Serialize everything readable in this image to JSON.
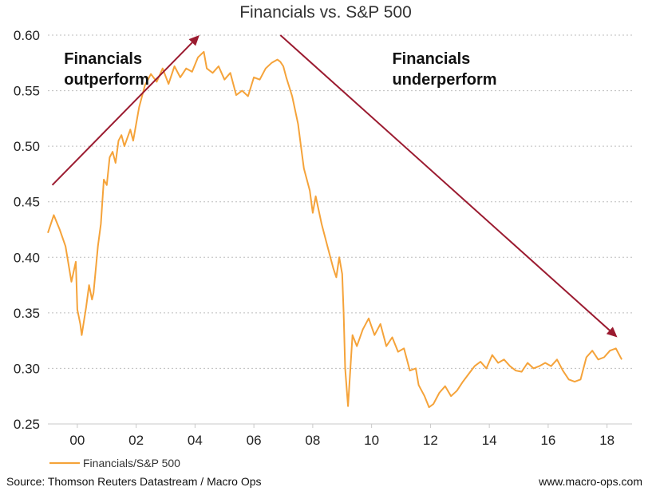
{
  "chart_data": {
    "type": "line",
    "title": "Financials vs. S&P 500",
    "xlabel": "",
    "ylabel": "",
    "x_tick_labels": [
      "00",
      "02",
      "04",
      "06",
      "08",
      "10",
      "12",
      "14",
      "16",
      "18"
    ],
    "x_tick_values": [
      2000,
      2002,
      2004,
      2006,
      2008,
      2010,
      2012,
      2014,
      2016,
      2018
    ],
    "xlim": [
      1999,
      2018.85
    ],
    "ylim": [
      0.25,
      0.6
    ],
    "y_ticks": [
      0.25,
      0.3,
      0.35,
      0.4,
      0.45,
      0.5,
      0.55,
      0.6
    ],
    "y_tick_labels": [
      "0.25",
      "0.30",
      "0.35",
      "0.40",
      "0.45",
      "0.50",
      "0.55",
      "0.60"
    ],
    "grid": true,
    "legend_position": "bottom-left",
    "series": [
      {
        "name": "Financials/S&P 500",
        "color": "#f5a33a",
        "x": [
          1999.0,
          1999.2,
          1999.4,
          1999.6,
          1999.8,
          1999.95,
          2000.0,
          2000.1,
          2000.15,
          2000.3,
          2000.4,
          2000.5,
          2000.55,
          2000.7,
          2000.8,
          2000.9,
          2001.0,
          2001.1,
          2001.2,
          2001.3,
          2001.4,
          2001.5,
          2001.6,
          2001.8,
          2001.9,
          2002.0,
          2002.1,
          2002.3,
          2002.5,
          2002.7,
          2002.9,
          2003.1,
          2003.3,
          2003.5,
          2003.7,
          2003.9,
          2004.1,
          2004.3,
          2004.4,
          2004.6,
          2004.8,
          2005.0,
          2005.2,
          2005.4,
          2005.6,
          2005.8,
          2006.0,
          2006.2,
          2006.4,
          2006.6,
          2006.8,
          2006.9,
          2007.0,
          2007.1,
          2007.3,
          2007.5,
          2007.6,
          2007.7,
          2007.9,
          2008.0,
          2008.1,
          2008.3,
          2008.5,
          2008.7,
          2008.8,
          2008.9,
          2009.0,
          2009.05,
          2009.1,
          2009.2,
          2009.35,
          2009.5,
          2009.7,
          2009.9,
          2010.1,
          2010.3,
          2010.5,
          2010.7,
          2010.9,
          2011.1,
          2011.3,
          2011.5,
          2011.6,
          2011.8,
          2011.95,
          2012.1,
          2012.3,
          2012.5,
          2012.7,
          2012.9,
          2013.1,
          2013.3,
          2013.5,
          2013.7,
          2013.9,
          2014.1,
          2014.3,
          2014.5,
          2014.7,
          2014.9,
          2015.1,
          2015.3,
          2015.5,
          2015.7,
          2015.9,
          2016.1,
          2016.3,
          2016.5,
          2016.7,
          2016.9,
          2017.1,
          2017.3,
          2017.5,
          2017.7,
          2017.9,
          2018.1,
          2018.3,
          2018.5
        ],
        "values": [
          0.422,
          0.438,
          0.425,
          0.41,
          0.378,
          0.396,
          0.353,
          0.34,
          0.33,
          0.355,
          0.375,
          0.362,
          0.368,
          0.41,
          0.43,
          0.47,
          0.465,
          0.49,
          0.495,
          0.485,
          0.505,
          0.51,
          0.5,
          0.515,
          0.505,
          0.52,
          0.535,
          0.555,
          0.565,
          0.558,
          0.57,
          0.556,
          0.572,
          0.562,
          0.57,
          0.567,
          0.58,
          0.585,
          0.57,
          0.566,
          0.572,
          0.56,
          0.566,
          0.546,
          0.55,
          0.545,
          0.562,
          0.56,
          0.57,
          0.575,
          0.578,
          0.576,
          0.572,
          0.562,
          0.545,
          0.52,
          0.5,
          0.48,
          0.46,
          0.44,
          0.455,
          0.43,
          0.41,
          0.39,
          0.382,
          0.4,
          0.385,
          0.35,
          0.3,
          0.266,
          0.33,
          0.32,
          0.335,
          0.345,
          0.33,
          0.34,
          0.32,
          0.328,
          0.315,
          0.318,
          0.298,
          0.3,
          0.285,
          0.275,
          0.265,
          0.268,
          0.278,
          0.284,
          0.275,
          0.28,
          0.288,
          0.295,
          0.302,
          0.306,
          0.3,
          0.312,
          0.305,
          0.308,
          0.302,
          0.298,
          0.297,
          0.305,
          0.3,
          0.302,
          0.305,
          0.302,
          0.308,
          0.298,
          0.29,
          0.288,
          0.29,
          0.31,
          0.316,
          0.308,
          0.31,
          0.316,
          0.318,
          0.308
        ]
      }
    ],
    "annotations": [
      {
        "lines": [
          "Financials",
          "outperform"
        ],
        "x": 1999.55,
        "y": 0.574
      },
      {
        "lines": [
          "Financials",
          "underperform"
        ],
        "x": 2010.7,
        "y": 0.574
      }
    ],
    "arrows": [
      {
        "from": [
          1999.15,
          0.465
        ],
        "to": [
          2004.15,
          0.6
        ]
      },
      {
        "from": [
          2006.9,
          0.6
        ],
        "to": [
          2018.35,
          0.328
        ]
      }
    ],
    "arrow_color": "#9b1b30",
    "source": "Source: Thomson Reuters Datastream / Macro Ops",
    "website": "www.macro-ops.com"
  }
}
